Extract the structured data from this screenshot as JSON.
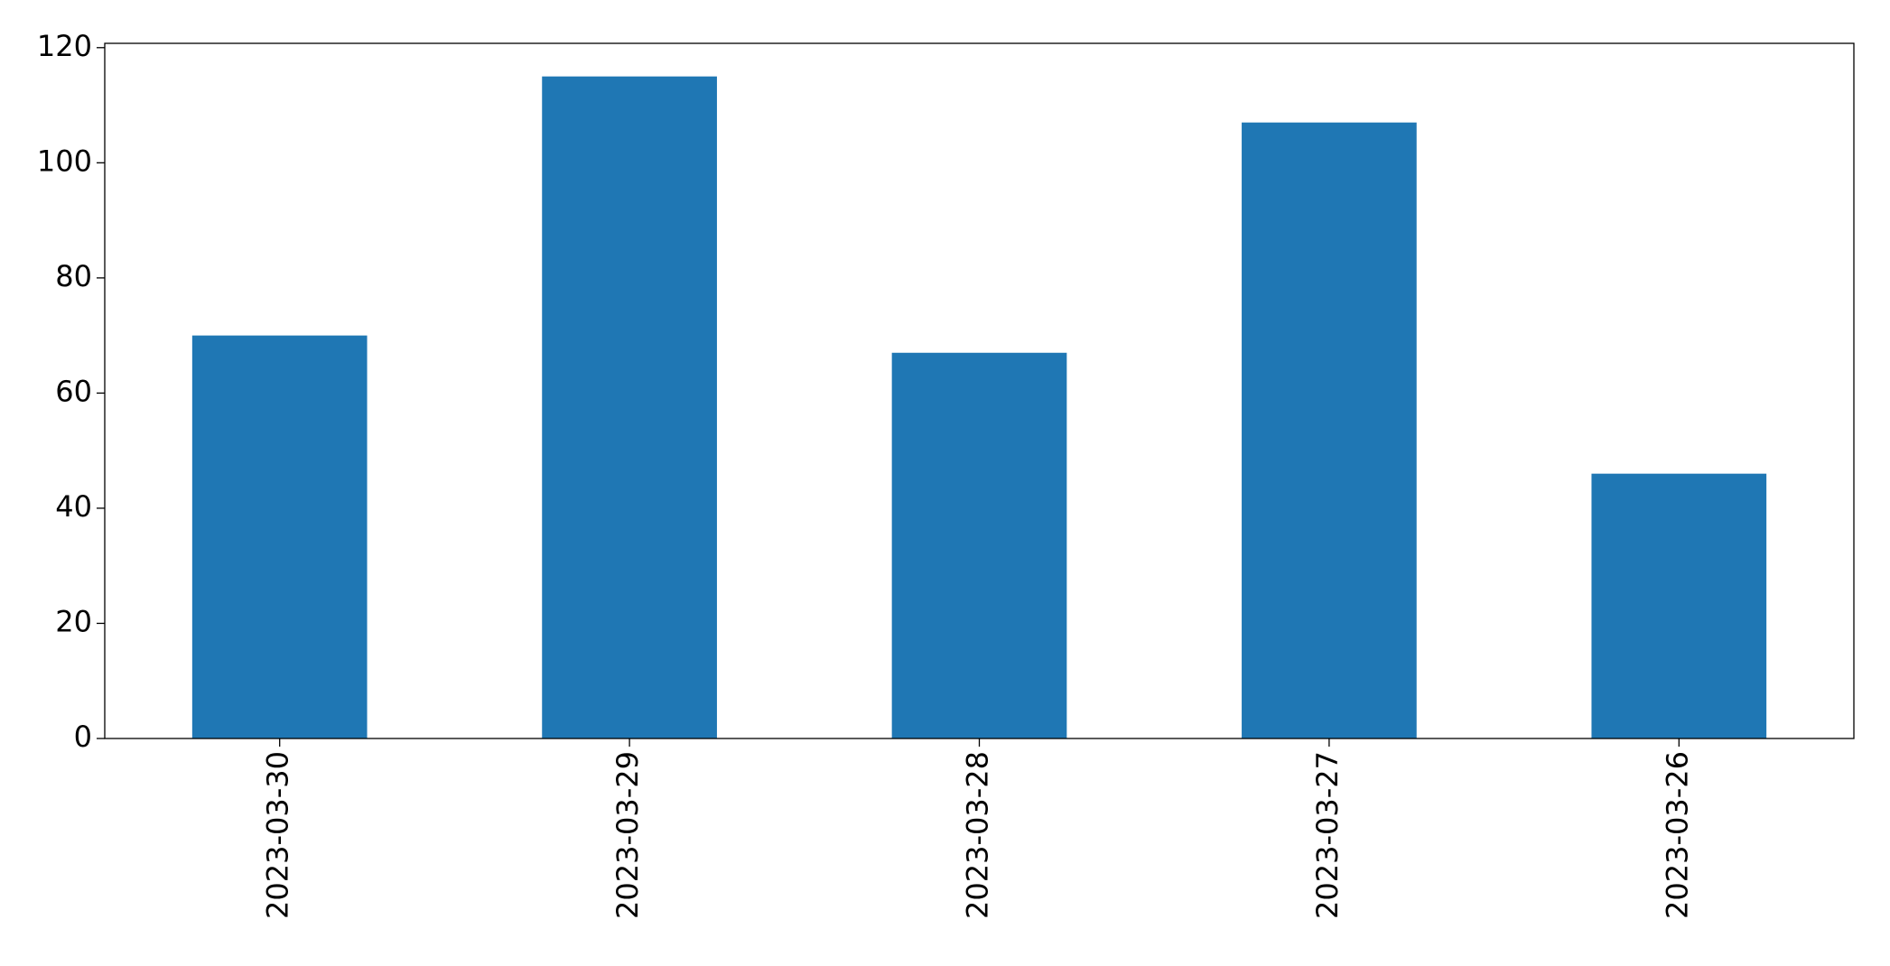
{
  "chart_data": {
    "type": "bar",
    "categories": [
      "2023-03-30",
      "2023-03-29",
      "2023-03-28",
      "2023-03-27",
      "2023-03-26"
    ],
    "values": [
      70,
      115,
      67,
      107,
      46
    ],
    "color": "#1f77b4",
    "ylim": [
      0,
      120.75
    ],
    "yticks": [
      0,
      20,
      40,
      60,
      80,
      100,
      120
    ],
    "grid": false
  }
}
